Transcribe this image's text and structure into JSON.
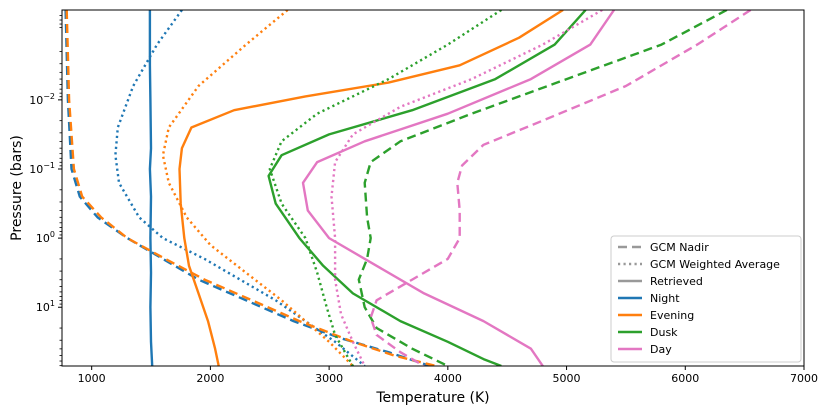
{
  "chart_data": {
    "type": "line",
    "title": "",
    "xlabel": "Temperature (K)",
    "ylabel": "Pressure (bars)",
    "xlim": [
      750,
      7000
    ],
    "ylim_log10": [
      1.85,
      -3.3
    ],
    "y_scale": "log",
    "y_inverted": true,
    "x_ticks": [
      1000,
      2000,
      3000,
      4000,
      5000,
      6000,
      7000
    ],
    "x_tick_labels": [
      "1000",
      "2000",
      "3000",
      "4000",
      "5000",
      "6000",
      "7000"
    ],
    "y_ticks_log10": [
      -2,
      -1,
      0,
      1
    ],
    "y_tick_labels": [
      {
        "base": "10",
        "exp": "−2"
      },
      {
        "base": "10",
        "exp": "−1"
      },
      {
        "base": "10",
        "exp": "0"
      },
      {
        "base": "10",
        "exp": "1"
      }
    ],
    "legend": {
      "position": "lower-right",
      "style_entries": [
        {
          "label": "GCM Nadir",
          "dash": "dashed"
        },
        {
          "label": "GCM Weighted Average",
          "dash": "dotted"
        },
        {
          "label": "Retrieved",
          "dash": "solid"
        }
      ],
      "color_entries": [
        {
          "label": "Night",
          "color": "#1f77b4"
        },
        {
          "label": "Evening",
          "color": "#ff7f0e"
        },
        {
          "label": "Dusk",
          "color": "#2ca02c"
        },
        {
          "label": "Day",
          "color": "#e377c2"
        }
      ],
      "style_color": "#999999"
    },
    "series": [
      {
        "name": "Night",
        "style": "solid",
        "color": "#1f77b4",
        "points": [
          [
            1490,
            -3.3
          ],
          [
            1490,
            -2.5
          ],
          [
            1495,
            -2.0
          ],
          [
            1500,
            -1.3
          ],
          [
            1490,
            -1.0
          ],
          [
            1500,
            -0.6
          ],
          [
            1495,
            0
          ],
          [
            1500,
            0.5
          ],
          [
            1495,
            1.0
          ],
          [
            1500,
            1.5
          ],
          [
            1510,
            1.85
          ]
        ]
      },
      {
        "name": "Night",
        "style": "dashed",
        "color": "#1f77b4",
        "points": [
          [
            780,
            -3.3
          ],
          [
            800,
            -2.0
          ],
          [
            830,
            -1.0
          ],
          [
            900,
            -0.6
          ],
          [
            1050,
            -0.3
          ],
          [
            1300,
            0
          ],
          [
            1600,
            0.3
          ],
          [
            1900,
            0.6
          ],
          [
            2300,
            0.9
          ],
          [
            2700,
            1.2
          ],
          [
            3100,
            1.45
          ],
          [
            3500,
            1.65
          ],
          [
            3850,
            1.85
          ]
        ]
      },
      {
        "name": "Night",
        "style": "dotted",
        "color": "#1f77b4",
        "points": [
          [
            1760,
            -3.3
          ],
          [
            1550,
            -2.8
          ],
          [
            1350,
            -2.2
          ],
          [
            1220,
            -1.6
          ],
          [
            1200,
            -1.2
          ],
          [
            1230,
            -0.8
          ],
          [
            1400,
            -0.3
          ],
          [
            1600,
            0
          ],
          [
            1950,
            0.3
          ],
          [
            2250,
            0.6
          ],
          [
            2550,
            0.9
          ],
          [
            2800,
            1.2
          ],
          [
            3050,
            1.5
          ],
          [
            3300,
            1.85
          ]
        ]
      },
      {
        "name": "Evening",
        "style": "solid",
        "color": "#ff7f0e",
        "points": [
          [
            4970,
            -3.3
          ],
          [
            4600,
            -2.9
          ],
          [
            4100,
            -2.5
          ],
          [
            3500,
            -2.25
          ],
          [
            2800,
            -2.05
          ],
          [
            2200,
            -1.85
          ],
          [
            1840,
            -1.6
          ],
          [
            1760,
            -1.3
          ],
          [
            1740,
            -1.0
          ],
          [
            1750,
            -0.5
          ],
          [
            1780,
            0
          ],
          [
            1820,
            0.4
          ],
          [
            1900,
            0.8
          ],
          [
            1980,
            1.2
          ],
          [
            2040,
            1.6
          ],
          [
            2070,
            1.85
          ]
        ]
      },
      {
        "name": "Evening",
        "style": "dashed",
        "color": "#ff7f0e",
        "points": [
          [
            790,
            -3.3
          ],
          [
            810,
            -2.0
          ],
          [
            850,
            -1.0
          ],
          [
            920,
            -0.6
          ],
          [
            1080,
            -0.3
          ],
          [
            1300,
            0
          ],
          [
            1620,
            0.3
          ],
          [
            1950,
            0.6
          ],
          [
            2350,
            0.9
          ],
          [
            2750,
            1.2
          ],
          [
            3200,
            1.5
          ],
          [
            3550,
            1.7
          ],
          [
            3900,
            1.85
          ]
        ]
      },
      {
        "name": "Evening",
        "style": "dotted",
        "color": "#ff7f0e",
        "points": [
          [
            2650,
            -3.3
          ],
          [
            2300,
            -2.8
          ],
          [
            1900,
            -2.2
          ],
          [
            1650,
            -1.6
          ],
          [
            1600,
            -1.2
          ],
          [
            1650,
            -0.8
          ],
          [
            1800,
            -0.3
          ],
          [
            2000,
            0.1
          ],
          [
            2300,
            0.5
          ],
          [
            2600,
            0.9
          ],
          [
            2800,
            1.2
          ],
          [
            3000,
            1.5
          ],
          [
            3200,
            1.85
          ]
        ]
      },
      {
        "name": "Dusk",
        "style": "solid",
        "color": "#2ca02c",
        "points": [
          [
            5160,
            -3.3
          ],
          [
            4900,
            -2.8
          ],
          [
            4400,
            -2.3
          ],
          [
            3700,
            -1.85
          ],
          [
            3000,
            -1.5
          ],
          [
            2600,
            -1.2
          ],
          [
            2490,
            -0.9
          ],
          [
            2550,
            -0.5
          ],
          [
            2750,
            0
          ],
          [
            2950,
            0.4
          ],
          [
            3200,
            0.8
          ],
          [
            3600,
            1.2
          ],
          [
            4000,
            1.5
          ],
          [
            4300,
            1.75
          ],
          [
            4450,
            1.85
          ]
        ]
      },
      {
        "name": "Dusk",
        "style": "dashed",
        "color": "#2ca02c",
        "points": [
          [
            6350,
            -3.3
          ],
          [
            5800,
            -2.8
          ],
          [
            5000,
            -2.3
          ],
          [
            4200,
            -1.8
          ],
          [
            3600,
            -1.4
          ],
          [
            3350,
            -1.1
          ],
          [
            3300,
            -0.8
          ],
          [
            3320,
            -0.3
          ],
          [
            3350,
            0
          ],
          [
            3320,
            0.3
          ],
          [
            3250,
            0.6
          ],
          [
            3300,
            1.0
          ],
          [
            3400,
            1.3
          ],
          [
            3700,
            1.6
          ],
          [
            4000,
            1.85
          ]
        ]
      },
      {
        "name": "Dusk",
        "style": "dotted",
        "color": "#2ca02c",
        "points": [
          [
            4450,
            -3.3
          ],
          [
            4000,
            -2.8
          ],
          [
            3500,
            -2.3
          ],
          [
            2900,
            -1.8
          ],
          [
            2600,
            -1.4
          ],
          [
            2500,
            -1.0
          ],
          [
            2600,
            -0.5
          ],
          [
            2800,
            0
          ],
          [
            2900,
            0.5
          ],
          [
            2980,
            1.0
          ],
          [
            3050,
            1.4
          ],
          [
            3200,
            1.85
          ]
        ]
      },
      {
        "name": "Day",
        "style": "solid",
        "color": "#e377c2",
        "points": [
          [
            5400,
            -3.3
          ],
          [
            5200,
            -2.8
          ],
          [
            4700,
            -2.3
          ],
          [
            4000,
            -1.8
          ],
          [
            3300,
            -1.4
          ],
          [
            2900,
            -1.1
          ],
          [
            2780,
            -0.8
          ],
          [
            2820,
            -0.4
          ],
          [
            3000,
            0
          ],
          [
            3400,
            0.4
          ],
          [
            3800,
            0.8
          ],
          [
            4300,
            1.2
          ],
          [
            4700,
            1.6
          ],
          [
            4800,
            1.85
          ]
        ]
      },
      {
        "name": "Day",
        "style": "dashed",
        "color": "#e377c2",
        "points": [
          [
            6550,
            -3.3
          ],
          [
            6100,
            -2.8
          ],
          [
            5500,
            -2.2
          ],
          [
            4800,
            -1.7
          ],
          [
            4300,
            -1.35
          ],
          [
            4120,
            -1.05
          ],
          [
            4080,
            -0.8
          ],
          [
            4100,
            -0.4
          ],
          [
            4100,
            0
          ],
          [
            4000,
            0.3
          ],
          [
            3700,
            0.6
          ],
          [
            3400,
            0.9
          ],
          [
            3350,
            1.15
          ],
          [
            3400,
            1.4
          ],
          [
            3600,
            1.65
          ],
          [
            3800,
            1.85
          ]
        ]
      },
      {
        "name": "Day",
        "style": "dotted",
        "color": "#e377c2",
        "points": [
          [
            5300,
            -3.3
          ],
          [
            4800,
            -2.8
          ],
          [
            4200,
            -2.3
          ],
          [
            3600,
            -1.9
          ],
          [
            3200,
            -1.5
          ],
          [
            3050,
            -1.1
          ],
          [
            3020,
            -0.6
          ],
          [
            3050,
            0
          ],
          [
            3050,
            0.6
          ],
          [
            3100,
            1.1
          ],
          [
            3200,
            1.5
          ],
          [
            3300,
            1.85
          ]
        ]
      }
    ]
  }
}
